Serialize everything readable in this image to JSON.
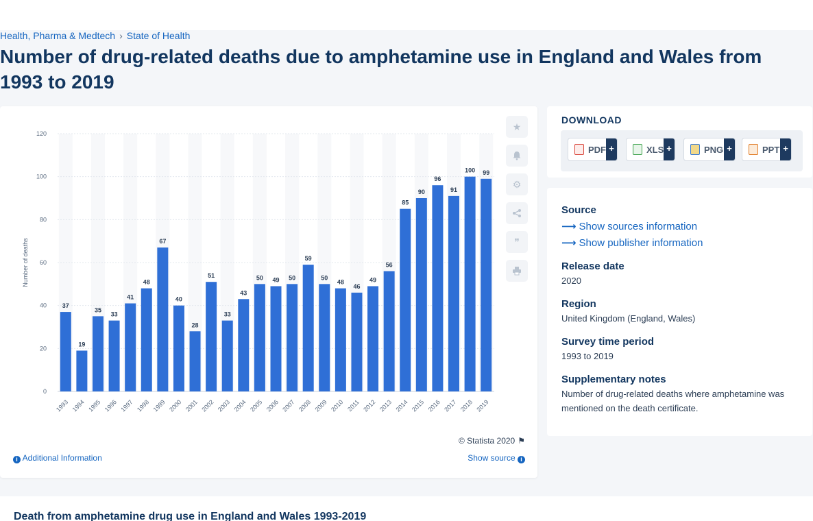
{
  "breadcrumb": {
    "items": [
      "Health, Pharma & Medtech",
      "State of Health"
    ],
    "separator": "›"
  },
  "page_title": "Number of drug-related deaths due to amphetamine use in England and Wales from 1993 to 2019",
  "colors": {
    "bar": "#2f6fd6",
    "accent": "#1565c0",
    "title": "#12365f"
  },
  "chart_data": {
    "type": "bar",
    "categories": [
      "1993",
      "1994",
      "1995",
      "1996",
      "1997",
      "1998",
      "1999",
      "2000",
      "2001",
      "2002",
      "2003",
      "2004",
      "2005",
      "2006",
      "2007",
      "2008",
      "2009",
      "2010",
      "2011",
      "2012",
      "2013",
      "2014",
      "2015",
      "2016",
      "2017",
      "2018",
      "2019"
    ],
    "values": [
      37,
      19,
      35,
      33,
      41,
      48,
      67,
      40,
      28,
      51,
      33,
      43,
      50,
      49,
      50,
      59,
      50,
      48,
      46,
      49,
      56,
      85,
      90,
      96,
      91,
      100,
      99
    ],
    "title": "",
    "xlabel": "",
    "ylabel": "Number of deaths",
    "ylim": [
      0,
      120
    ],
    "yticks": [
      0,
      20,
      40,
      60,
      80,
      100,
      120
    ],
    "data_labels": true,
    "grid": true
  },
  "chart_tools": {
    "icons": [
      "star-icon",
      "bell-icon",
      "gear-icon",
      "share-icon",
      "quote-icon",
      "print-icon"
    ]
  },
  "chart_footer": {
    "copyright": "© Statista 2020",
    "additional_info": "Additional Information",
    "show_source": "Show source"
  },
  "download": {
    "title": "DOWNLOAD",
    "buttons": [
      {
        "label": "PDF",
        "plus": "+",
        "icon": "pdf-icon",
        "color": "#d9453a"
      },
      {
        "label": "XLS",
        "plus": "+",
        "icon": "xls-icon",
        "color": "#3fa34d"
      },
      {
        "label": "PNG",
        "plus": "+",
        "icon": "png-icon",
        "color": "#3a7bd5"
      },
      {
        "label": "PPT",
        "plus": "+",
        "icon": "ppt-icon",
        "color": "#e07a22"
      }
    ]
  },
  "meta": {
    "source_heading": "Source",
    "show_sources": "Show sources information",
    "show_publisher": "Show publisher information",
    "release_heading": "Release date",
    "release_value": "2020",
    "region_heading": "Region",
    "region_value": "United Kingdom (England, Wales)",
    "survey_heading": "Survey time period",
    "survey_value": "1993 to 2019",
    "notes_heading": "Supplementary notes",
    "notes_value": "Number of drug-related deaths where amphetamine was mentioned on the death certificate."
  },
  "bottom": {
    "title": "Death from amphetamine drug use in England and Wales 1993-2019"
  }
}
